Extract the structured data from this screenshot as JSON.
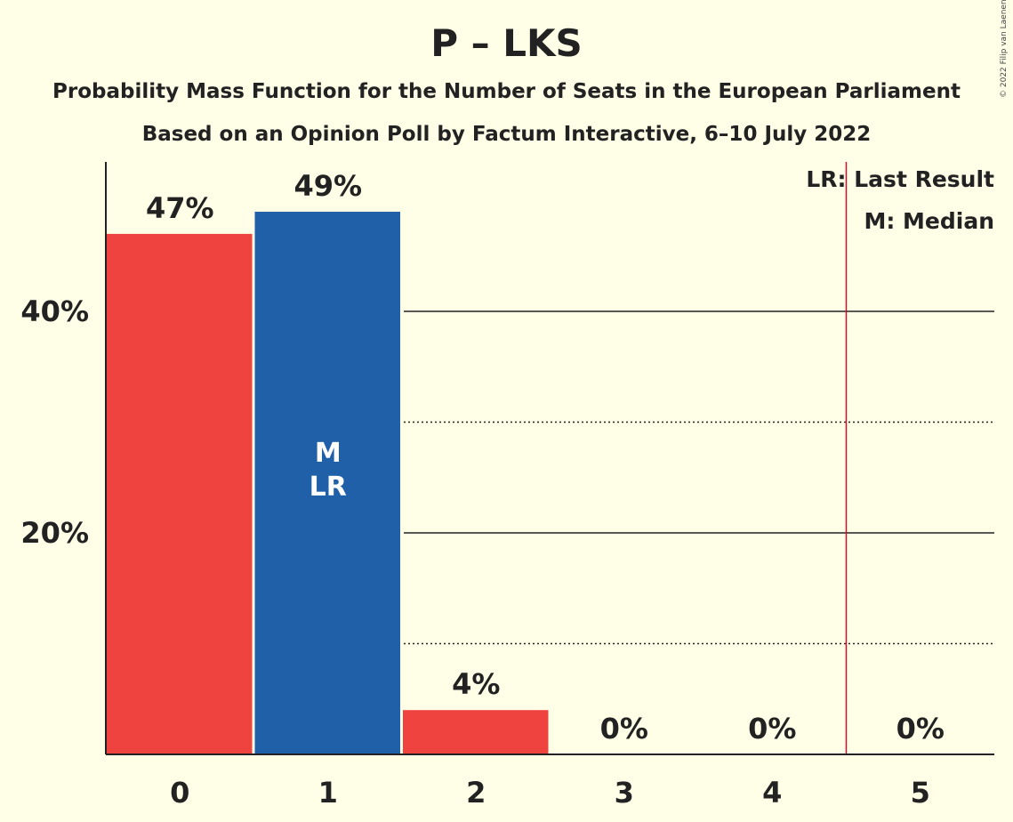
{
  "title": "P – LKS",
  "subtitle": "Probability Mass Function for the Number of Seats in the European Parliament",
  "poll_note": "Based on an Opinion Poll by Factum Interactive, 6–10 July 2022",
  "copyright": "© 2022 Filip van Laenen",
  "legend": {
    "last_result": "LR: Last Result",
    "median": "M: Median"
  },
  "colors": {
    "party": "#EF4340",
    "median_bar": "#2060A8",
    "last_result_line": "#C8102E",
    "background": "#FFFEE6"
  },
  "chart_data": {
    "type": "bar",
    "categories": [
      "0",
      "1",
      "2",
      "3",
      "4",
      "5"
    ],
    "values": [
      47,
      49,
      4,
      0,
      0,
      0
    ],
    "value_labels": [
      "47%",
      "49%",
      "4%",
      "0%",
      "0%",
      "0%"
    ],
    "bar_annotations": [
      "",
      "M\nLR",
      "",
      "",
      "",
      ""
    ],
    "median": 1,
    "last_result": 1,
    "last_result_line_at": 4.5,
    "ylim": [
      0,
      53.5
    ],
    "yticks": [
      20,
      40
    ],
    "ytick_labels": [
      "20%",
      "40%"
    ],
    "minor_gridlines": [
      10,
      30
    ],
    "xlabel": "",
    "ylabel": ""
  }
}
